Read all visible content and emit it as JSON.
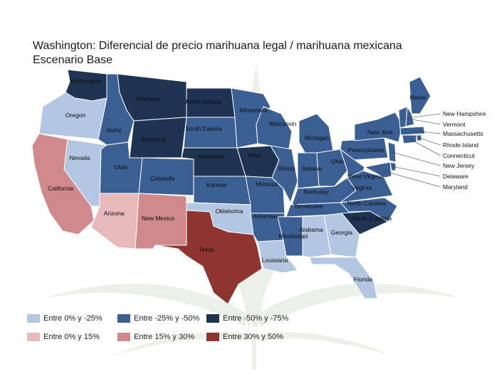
{
  "title": {
    "line1": "Washington: Diferencial de precio marihuana legal / marihuana mexicana",
    "line2": "Escenario  Base"
  },
  "colors": {
    "neg_0_25": "#b3c6e2",
    "neg_25_50": "#3b5f93",
    "neg_50_75": "#1f3352",
    "pos_0_15": "#e7b9bb",
    "pos_15_30": "#d18a8c",
    "pos_30_50": "#8e3532",
    "leaf": "#dfe5d6",
    "border": "#ffffff"
  },
  "legend": [
    {
      "label": "Entre 0% y -25%",
      "color_key": "neg_0_25"
    },
    {
      "label": "Entre -25% y -50%",
      "color_key": "neg_25_50"
    },
    {
      "label": "Entre -50% y -75%",
      "color_key": "neg_50_75"
    },
    {
      "label": "Entre 0% y 15%",
      "color_key": "pos_0_15"
    },
    {
      "label": "Entre 15% y 30%",
      "color_key": "pos_15_30"
    },
    {
      "label": "Entre 30% y 50%",
      "color_key": "pos_30_50"
    }
  ],
  "states": [
    {
      "name": "Washington",
      "category": "neg_50_75"
    },
    {
      "name": "Oregon",
      "category": "neg_0_25"
    },
    {
      "name": "California",
      "category": "pos_15_30"
    },
    {
      "name": "Nevada",
      "category": "neg_0_25"
    },
    {
      "name": "Idaho",
      "category": "neg_25_50"
    },
    {
      "name": "Montana",
      "category": "neg_50_75"
    },
    {
      "name": "Wyoming",
      "category": "neg_50_75"
    },
    {
      "name": "Utah",
      "category": "neg_25_50"
    },
    {
      "name": "Arizona",
      "category": "pos_0_15"
    },
    {
      "name": "Colorado",
      "category": "neg_25_50"
    },
    {
      "name": "New Mexico",
      "category": "pos_15_30"
    },
    {
      "name": "North Dakota",
      "category": "neg_50_75"
    },
    {
      "name": "South Dakota",
      "category": "neg_25_50"
    },
    {
      "name": "Nebraska",
      "category": "neg_50_75"
    },
    {
      "name": "Kansas",
      "category": "neg_25_50"
    },
    {
      "name": "Oklahoma",
      "category": "neg_0_25"
    },
    {
      "name": "Texas",
      "category": "pos_30_50"
    },
    {
      "name": "Minnesota",
      "category": "neg_25_50"
    },
    {
      "name": "Iowa",
      "category": "neg_50_75"
    },
    {
      "name": "Missouri",
      "category": "neg_25_50"
    },
    {
      "name": "Arkansas",
      "category": "neg_25_50"
    },
    {
      "name": "Louisiana",
      "category": "neg_0_25"
    },
    {
      "name": "Wisconsin",
      "category": "neg_25_50"
    },
    {
      "name": "Illinois",
      "category": "neg_25_50"
    },
    {
      "name": "Michigan",
      "category": "neg_25_50"
    },
    {
      "name": "Indiana",
      "category": "neg_25_50"
    },
    {
      "name": "Ohio",
      "category": "neg_25_50"
    },
    {
      "name": "Kentucky",
      "category": "neg_25_50"
    },
    {
      "name": "Tennessee",
      "category": "neg_25_50"
    },
    {
      "name": "Mississippi",
      "category": "neg_25_50"
    },
    {
      "name": "Alabama",
      "category": "neg_0_25"
    },
    {
      "name": "Georgia",
      "category": "neg_0_25"
    },
    {
      "name": "Florida",
      "category": "neg_0_25"
    },
    {
      "name": "South Carolina",
      "category": "neg_50_75"
    },
    {
      "name": "North Carolina",
      "category": "neg_25_50"
    },
    {
      "name": "Virginia",
      "category": "neg_25_50"
    },
    {
      "name": "West Virginia",
      "category": "neg_25_50"
    },
    {
      "name": "Pennsylvania",
      "category": "neg_25_50"
    },
    {
      "name": "New York",
      "category": "neg_25_50"
    },
    {
      "name": "Maine",
      "category": "neg_25_50"
    },
    {
      "name": "New Hampshire",
      "category": "neg_25_50"
    },
    {
      "name": "Vermont",
      "category": "neg_25_50"
    },
    {
      "name": "Massachusetts",
      "category": "neg_25_50"
    },
    {
      "name": "Rhode Island",
      "category": "neg_25_50"
    },
    {
      "name": "Connecticut",
      "category": "neg_25_50"
    },
    {
      "name": "New Jersey",
      "category": "neg_25_50"
    },
    {
      "name": "Delaware",
      "category": "neg_25_50"
    },
    {
      "name": "Maryland",
      "category": "neg_25_50"
    }
  ]
}
